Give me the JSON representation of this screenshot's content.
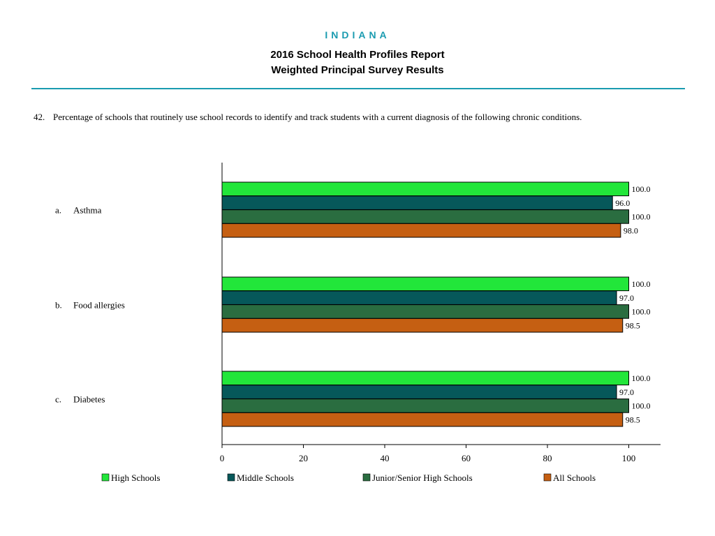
{
  "header": {
    "state": "INDIANA",
    "title_line1": "2016 School Health Profiles Report",
    "title_line2": "Weighted Principal Survey Results"
  },
  "question": {
    "number": "42.",
    "text": "Percentage of schools that routinely use school records to identify and track students with a current diagnosis of the following chronic conditions."
  },
  "chart_data": {
    "type": "bar",
    "orientation": "horizontal",
    "categories": [
      {
        "letter": "a.",
        "label": "Asthma"
      },
      {
        "letter": "b.",
        "label": "Food allergies"
      },
      {
        "letter": "c.",
        "label": "Diabetes"
      }
    ],
    "series": [
      {
        "name": "High Schools",
        "color": "#22e63a",
        "values": [
          100.0,
          100.0,
          100.0
        ],
        "labels": [
          "100.0",
          "100.0",
          "100.0"
        ]
      },
      {
        "name": "Middle Schools",
        "color": "#06585a",
        "values": [
          96.0,
          97.0,
          97.0
        ],
        "labels": [
          "96.0",
          "97.0",
          "97.0"
        ]
      },
      {
        "name": "Junior/Senior High Schools",
        "color": "#2a6d40",
        "values": [
          100.0,
          100.0,
          100.0
        ],
        "labels": [
          "100.0",
          "100.0",
          "100.0"
        ]
      },
      {
        "name": "All Schools",
        "color": "#c55f12",
        "values": [
          98.0,
          98.5,
          98.5
        ],
        "labels": [
          "98.0",
          "98.5",
          "98.5"
        ]
      }
    ],
    "xlim": [
      0,
      100
    ],
    "xticks": [
      "0",
      "20",
      "40",
      "60",
      "80",
      "100"
    ],
    "grid": false,
    "legend_position": "bottom"
  }
}
